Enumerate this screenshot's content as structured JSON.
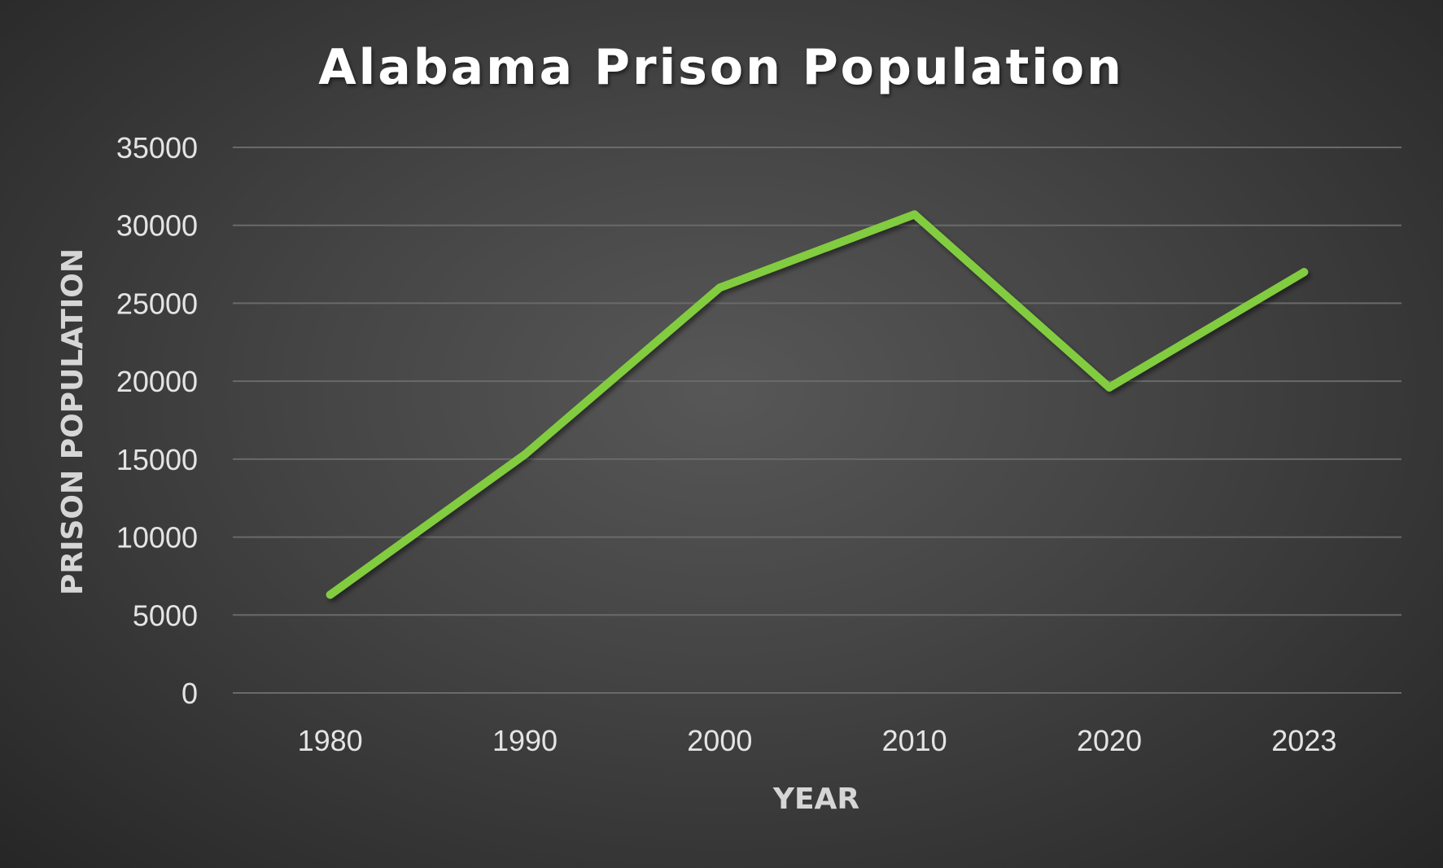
{
  "chart_data": {
    "type": "line",
    "title": "Alabama Prison Population",
    "xlabel": "YEAR",
    "ylabel": "PRISON POPULATION",
    "categories": [
      "1980",
      "1990",
      "2000",
      "2010",
      "2020",
      "2023"
    ],
    "series": [
      {
        "values": [
          6300,
          15300,
          26000,
          30700,
          19600,
          27000
        ],
        "color": "#82cc41"
      }
    ],
    "ylim": [
      0,
      35000
    ],
    "yticks": [
      0,
      5000,
      10000,
      15000,
      20000,
      25000,
      30000,
      35000
    ],
    "grid": true,
    "legend": "none"
  }
}
